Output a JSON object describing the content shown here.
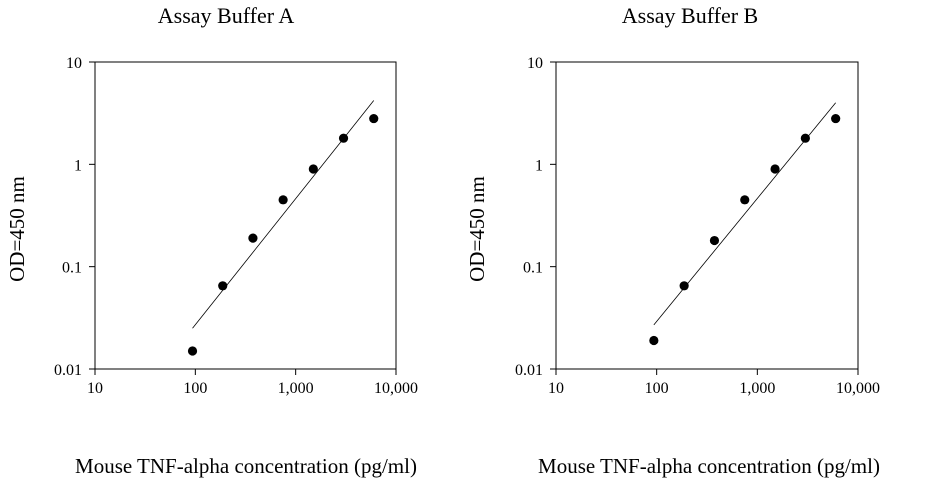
{
  "colors": {
    "background": "#ffffff",
    "ink": "#000000"
  },
  "chart_data": [
    {
      "type": "scatter",
      "title": "Assay Buffer A",
      "xlabel": "Mouse TNF-alpha concentration (pg/ml)",
      "ylabel": "OD=450 nm",
      "x_scale": "log",
      "y_scale": "log",
      "xlim": [
        10,
        10000
      ],
      "ylim": [
        0.01,
        10
      ],
      "x_ticks": [
        10,
        100,
        1000,
        10000
      ],
      "x_tick_labels": [
        "10",
        "100",
        "1,000",
        "10,000"
      ],
      "y_ticks": [
        0.01,
        0.1,
        1,
        10
      ],
      "y_tick_labels": [
        "0.01",
        "0.1",
        "1",
        "10"
      ],
      "grid": false,
      "x": [
        93.75,
        187.5,
        375,
        750,
        1500,
        3000,
        6000
      ],
      "y": [
        0.015,
        0.065,
        0.19,
        0.45,
        0.9,
        1.8,
        2.8
      ],
      "fit_line": {
        "x": [
          93.75,
          6000
        ],
        "y": [
          0.025,
          4.2
        ]
      }
    },
    {
      "type": "scatter",
      "title": "Assay Buffer B",
      "xlabel": "Mouse TNF-alpha concentration (pg/ml)",
      "ylabel": "OD=450 nm",
      "x_scale": "log",
      "y_scale": "log",
      "xlim": [
        10,
        10000
      ],
      "ylim": [
        0.01,
        10
      ],
      "x_ticks": [
        10,
        100,
        1000,
        10000
      ],
      "x_tick_labels": [
        "10",
        "100",
        "1,000",
        "10,000"
      ],
      "y_ticks": [
        0.01,
        0.1,
        1,
        10
      ],
      "y_tick_labels": [
        "0.01",
        "0.1",
        "1",
        "10"
      ],
      "grid": false,
      "x": [
        93.75,
        187.5,
        375,
        750,
        1500,
        3000,
        6000
      ],
      "y": [
        0.019,
        0.065,
        0.18,
        0.45,
        0.9,
        1.8,
        2.8
      ],
      "fit_line": {
        "x": [
          93.75,
          6000
        ],
        "y": [
          0.027,
          4.0
        ]
      }
    }
  ]
}
